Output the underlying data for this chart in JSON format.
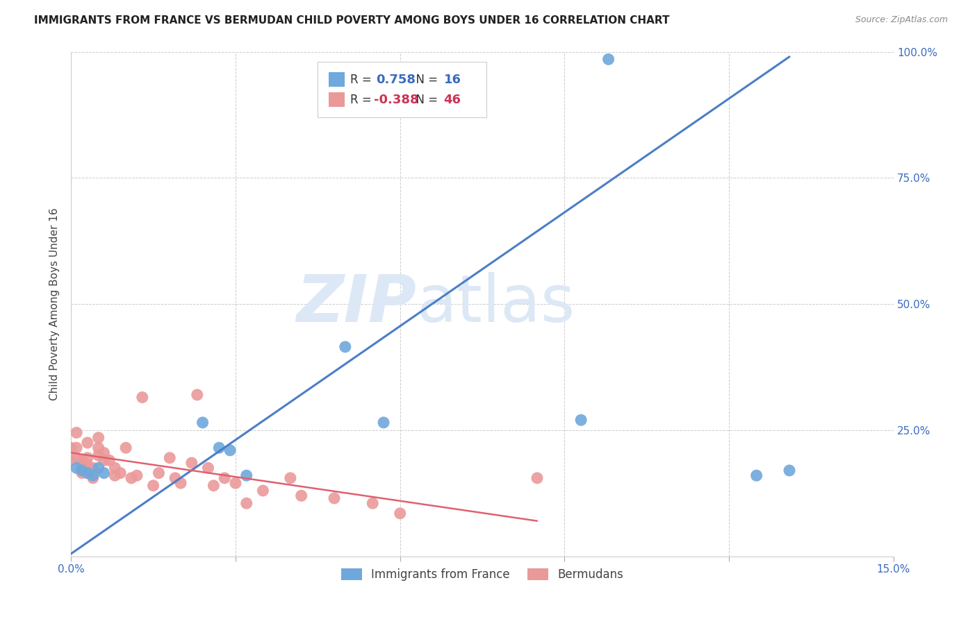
{
  "title": "IMMIGRANTS FROM FRANCE VS BERMUDAN CHILD POVERTY AMONG BOYS UNDER 16 CORRELATION CHART",
  "source": "Source: ZipAtlas.com",
  "ylabel": "Child Poverty Among Boys Under 16",
  "x_label_blue": "Immigrants from France",
  "x_label_pink": "Bermudans",
  "xlim": [
    0.0,
    0.15
  ],
  "ylim": [
    0.0,
    1.0
  ],
  "xtick_positions": [
    0.0,
    0.03,
    0.06,
    0.09,
    0.12,
    0.15
  ],
  "xticklabels": [
    "0.0%",
    "",
    "",
    "",
    "",
    "15.0%"
  ],
  "ytick_positions": [
    0.0,
    0.25,
    0.5,
    0.75,
    1.0
  ],
  "yticklabels": [
    "",
    "25.0%",
    "50.0%",
    "75.0%",
    "100.0%"
  ],
  "R_blue": 0.758,
  "N_blue": 16,
  "R_pink": -0.388,
  "N_pink": 46,
  "blue_color": "#6fa8dc",
  "pink_color": "#ea9999",
  "blue_line_color": "#4a7ec8",
  "pink_line_color": "#e06070",
  "watermark": "ZIPatlas",
  "watermark_color": "#dce8f5",
  "blue_points_x": [
    0.001,
    0.002,
    0.003,
    0.004,
    0.005,
    0.006,
    0.024,
    0.027,
    0.029,
    0.032,
    0.05,
    0.057,
    0.093,
    0.098,
    0.125,
    0.131
  ],
  "blue_points_y": [
    0.175,
    0.17,
    0.165,
    0.16,
    0.175,
    0.165,
    0.265,
    0.215,
    0.21,
    0.16,
    0.415,
    0.265,
    0.27,
    0.985,
    0.16,
    0.17
  ],
  "pink_points_x": [
    0.0,
    0.0,
    0.001,
    0.001,
    0.001,
    0.002,
    0.002,
    0.002,
    0.003,
    0.003,
    0.003,
    0.003,
    0.004,
    0.004,
    0.005,
    0.005,
    0.005,
    0.006,
    0.006,
    0.007,
    0.008,
    0.008,
    0.009,
    0.01,
    0.011,
    0.012,
    0.013,
    0.015,
    0.016,
    0.018,
    0.019,
    0.02,
    0.022,
    0.023,
    0.025,
    0.026,
    0.028,
    0.03,
    0.032,
    0.035,
    0.04,
    0.042,
    0.048,
    0.055,
    0.06,
    0.085
  ],
  "pink_points_y": [
    0.19,
    0.215,
    0.195,
    0.245,
    0.215,
    0.19,
    0.18,
    0.165,
    0.225,
    0.18,
    0.195,
    0.165,
    0.175,
    0.155,
    0.235,
    0.215,
    0.2,
    0.205,
    0.19,
    0.19,
    0.175,
    0.16,
    0.165,
    0.215,
    0.155,
    0.16,
    0.315,
    0.14,
    0.165,
    0.195,
    0.155,
    0.145,
    0.185,
    0.32,
    0.175,
    0.14,
    0.155,
    0.145,
    0.105,
    0.13,
    0.155,
    0.12,
    0.115,
    0.105,
    0.085,
    0.155
  ],
  "blue_trend_x": [
    0.0,
    0.131
  ],
  "blue_trend_y": [
    0.005,
    0.99
  ],
  "pink_trend_x": [
    0.0,
    0.085
  ],
  "pink_trend_y": [
    0.205,
    0.07
  ]
}
